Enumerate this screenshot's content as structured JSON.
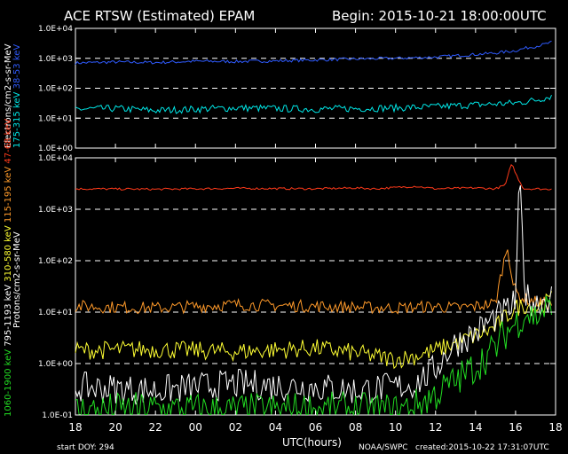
{
  "header": {
    "title": "ACE RTSW (Estimated) EPAM",
    "begin": "Begin: 2015-10-21 18:00:00UTC"
  },
  "footer": {
    "start_doy": "start DOY:  294",
    "xlabel": "UTC(hours)",
    "credit": "NOAA/SWPC",
    "created": "created:2015-10-22 17:31:07UTC"
  },
  "chart_data": [
    {
      "type": "line",
      "panel": "electrons",
      "ylabel_prefix": "Electrons/cm2-s-sr-MeV",
      "scale": "log",
      "ylim": [
        1,
        10000
      ],
      "yticks": [
        "1.0E+00",
        "1.0E+01",
        "1.0E+02",
        "1.0E+03",
        "1.0E+04"
      ],
      "x_unit": "hours since 2015-10-21 18:00 UTC",
      "xlim": [
        0,
        24
      ],
      "xticks": [
        "18",
        "20",
        "22",
        "00",
        "02",
        "04",
        "06",
        "08",
        "10",
        "12",
        "14",
        "16",
        "18"
      ],
      "grid": "dashed horizontal lines at 1.0E+01, 1.0E+02, 1.0E+03",
      "series": [
        {
          "name": "38-53 keV",
          "color": "#2f5bff",
          "x": [
            0,
            2,
            4,
            6,
            8,
            10,
            12,
            14,
            16,
            18,
            20,
            21,
            22,
            22.5,
            23,
            23.5,
            23.8
          ],
          "y": [
            700,
            750,
            720,
            800,
            780,
            820,
            880,
            950,
            1000,
            1100,
            1350,
            1500,
            1800,
            2200,
            2500,
            3000,
            3400
          ]
        },
        {
          "name": "175-315 keV",
          "color": "#00e8e8",
          "x": [
            0,
            2,
            4,
            6,
            8,
            10,
            12,
            14,
            16,
            18,
            20,
            22,
            23,
            23.8
          ],
          "y": [
            20,
            21,
            18,
            20,
            22,
            21,
            20,
            21,
            22,
            24,
            28,
            32,
            40,
            55
          ]
        }
      ]
    },
    {
      "type": "line",
      "panel": "protons",
      "ylabel_prefix": "Protons/cm2-s-sr-MeV",
      "scale": "log",
      "ylim": [
        0.1,
        10000
      ],
      "yticks": [
        "1.0E-01",
        "1.0E+00",
        "1.0E+01",
        "1.0E+02",
        "1.0E+03",
        "1.0E+04"
      ],
      "x_unit": "hours since 2015-10-21 18:00 UTC",
      "xlim": [
        0,
        24
      ],
      "xticks": [
        "18",
        "20",
        "22",
        "00",
        "02",
        "04",
        "06",
        "08",
        "10",
        "12",
        "14",
        "16",
        "18"
      ],
      "grid": "dashed horizontal lines at 1.0E+00, 1.0E+01, 1.0E+02, 1.0E+03",
      "series": [
        {
          "name": "47-68 keV",
          "color": "#ff3a1a",
          "x": [
            0,
            4,
            8,
            12,
            14,
            15,
            17,
            18,
            19,
            20,
            21,
            21.5,
            21.8,
            22,
            22.4,
            23,
            23.5,
            23.8
          ],
          "y": [
            2500,
            2450,
            2550,
            2500,
            2600,
            2500,
            2800,
            2500,
            2550,
            2600,
            2500,
            3000,
            8000,
            5000,
            2500,
            2500,
            2450,
            2500
          ]
        },
        {
          "name": "115-195 keV",
          "color": "#ff9a2a",
          "x": [
            0,
            4,
            8,
            12,
            16,
            18,
            19,
            20,
            20.5,
            21,
            21.3,
            21.6,
            21.9,
            22.2,
            22.5,
            23,
            23.5,
            23.8
          ],
          "y": [
            13,
            12,
            14,
            13,
            12,
            13,
            12,
            13,
            14,
            15,
            60,
            200,
            30,
            20,
            18,
            16,
            15,
            14
          ]
        },
        {
          "name": "310-580 keV",
          "color": "#ffff33",
          "x": [
            0,
            4,
            8,
            12,
            14,
            16,
            17,
            18,
            19,
            20,
            21,
            21.5,
            22,
            22.5,
            23,
            23.5,
            23.8
          ],
          "y": [
            1.8,
            1.9,
            1.7,
            2.0,
            1.6,
            1.2,
            1.4,
            1.8,
            2.5,
            3.5,
            5,
            8,
            12,
            14,
            12,
            15,
            18
          ]
        },
        {
          "name": "795-1193 keV",
          "color": "#ffffff",
          "x": [
            0,
            4,
            8,
            12,
            14,
            16,
            17,
            18,
            18.5,
            19,
            20,
            21,
            21.5,
            22,
            22.2,
            22.5,
            23,
            23.5,
            23.8
          ],
          "y": [
            0.35,
            0.3,
            0.4,
            0.35,
            0.3,
            0.35,
            0.4,
            0.8,
            1.5,
            2.5,
            4,
            8,
            10,
            15,
            4000,
            20,
            15,
            18,
            20
          ]
        },
        {
          "name": "1060-1900 keV",
          "color": "#22dd22",
          "x": [
            0,
            4,
            8,
            12,
            16,
            17,
            18,
            19,
            20,
            21,
            21.5,
            22,
            22.5,
            23,
            23.5,
            23.8
          ],
          "y": [
            0.12,
            0.13,
            0.12,
            0.13,
            0.12,
            0.15,
            0.25,
            0.45,
            0.9,
            2,
            4,
            6,
            10,
            8,
            12,
            10
          ]
        }
      ]
    }
  ]
}
